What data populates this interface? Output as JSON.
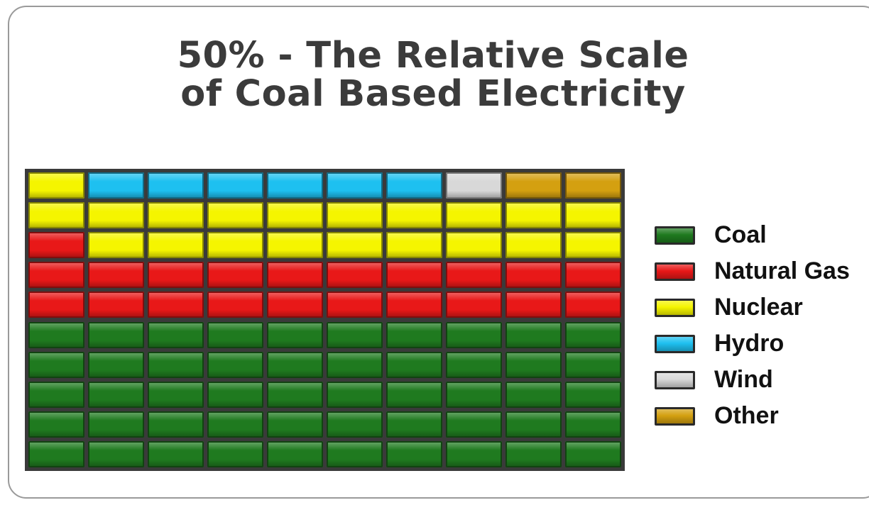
{
  "chart_data": {
    "type": "waffle",
    "title": "50% - The Relative Scale of Coal Based Electricity",
    "title_lines": [
      "50% - The Relative Scale",
      "of Coal Based Electricity"
    ],
    "rows": 10,
    "columns": 10,
    "categories": [
      {
        "name": "Coal",
        "value": 50,
        "color": "#1f7a1f"
      },
      {
        "name": "Natural Gas",
        "value": 21,
        "color": "#e81818"
      },
      {
        "name": "Nuclear",
        "value": 20,
        "color": "#f5f500"
      },
      {
        "name": "Hydro",
        "value": 6,
        "color": "#1ec0f0"
      },
      {
        "name": "Wind",
        "value": 1,
        "color": "#d8d8d8"
      },
      {
        "name": "Other",
        "value": 2,
        "color": "#d4a010"
      }
    ],
    "cells": [
      [
        "Nuclear",
        "Hydro",
        "Hydro",
        "Hydro",
        "Hydro",
        "Hydro",
        "Hydro",
        "Wind",
        "Other",
        "Other"
      ],
      [
        "Nuclear",
        "Nuclear",
        "Nuclear",
        "Nuclear",
        "Nuclear",
        "Nuclear",
        "Nuclear",
        "Nuclear",
        "Nuclear",
        "Nuclear"
      ],
      [
        "Natural Gas",
        "Nuclear",
        "Nuclear",
        "Nuclear",
        "Nuclear",
        "Nuclear",
        "Nuclear",
        "Nuclear",
        "Nuclear",
        "Nuclear"
      ],
      [
        "Natural Gas",
        "Natural Gas",
        "Natural Gas",
        "Natural Gas",
        "Natural Gas",
        "Natural Gas",
        "Natural Gas",
        "Natural Gas",
        "Natural Gas",
        "Natural Gas"
      ],
      [
        "Natural Gas",
        "Natural Gas",
        "Natural Gas",
        "Natural Gas",
        "Natural Gas",
        "Natural Gas",
        "Natural Gas",
        "Natural Gas",
        "Natural Gas",
        "Natural Gas"
      ],
      [
        "Coal",
        "Coal",
        "Coal",
        "Coal",
        "Coal",
        "Coal",
        "Coal",
        "Coal",
        "Coal",
        "Coal"
      ],
      [
        "Coal",
        "Coal",
        "Coal",
        "Coal",
        "Coal",
        "Coal",
        "Coal",
        "Coal",
        "Coal",
        "Coal"
      ],
      [
        "Coal",
        "Coal",
        "Coal",
        "Coal",
        "Coal",
        "Coal",
        "Coal",
        "Coal",
        "Coal",
        "Coal"
      ],
      [
        "Coal",
        "Coal",
        "Coal",
        "Coal",
        "Coal",
        "Coal",
        "Coal",
        "Coal",
        "Coal",
        "Coal"
      ],
      [
        "Coal",
        "Coal",
        "Coal",
        "Coal",
        "Coal",
        "Coal",
        "Coal",
        "Coal",
        "Coal",
        "Coal"
      ]
    ],
    "legend": {
      "position": "right",
      "items": [
        "Coal",
        "Natural Gas",
        "Nuclear",
        "Hydro",
        "Wind",
        "Other"
      ]
    }
  }
}
